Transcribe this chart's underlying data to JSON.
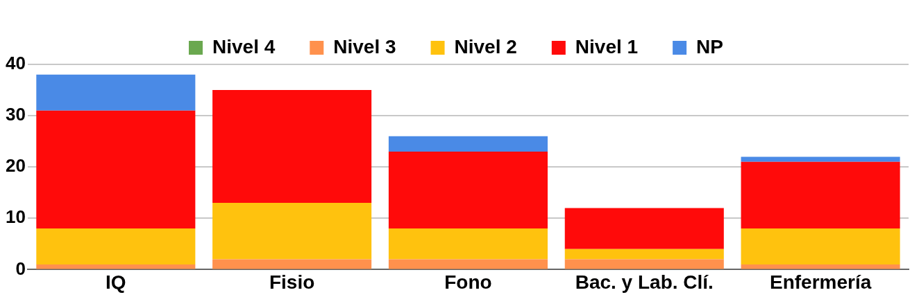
{
  "chart_data": {
    "type": "bar",
    "stacked": true,
    "categories": [
      "IQ",
      "Fisio",
      "Fono",
      "Bac. y Lab. Clí.",
      "Enfermería"
    ],
    "series": [
      {
        "name": "Nivel 4",
        "color": "#6aa84f",
        "values": [
          0,
          0,
          0,
          0,
          0
        ]
      },
      {
        "name": "Nivel 3",
        "color": "#ff914d",
        "values": [
          1,
          2,
          2,
          2,
          1
        ]
      },
      {
        "name": "Nivel 2",
        "color": "#ffc20e",
        "values": [
          7,
          11,
          6,
          2,
          7
        ]
      },
      {
        "name": "Nivel 1",
        "color": "#ff0a0a",
        "values": [
          23,
          22,
          15,
          8,
          13
        ]
      },
      {
        "name": "NP",
        "color": "#4a8ae6",
        "values": [
          7,
          0,
          3,
          0,
          1
        ]
      }
    ],
    "ylim": [
      0,
      40
    ],
    "yticks": [
      0,
      10,
      20,
      30,
      40
    ],
    "grid": "y",
    "legend": "top"
  }
}
